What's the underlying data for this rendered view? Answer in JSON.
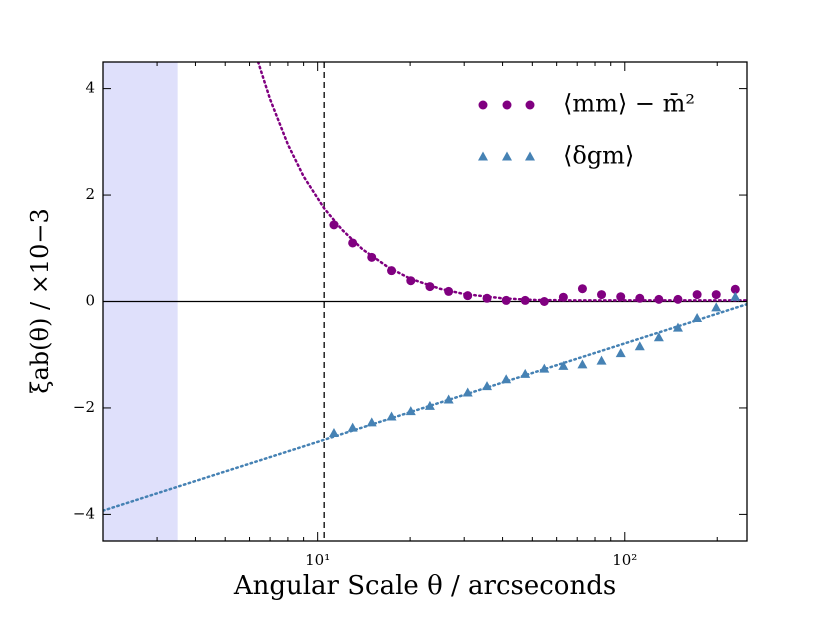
{
  "chart_data": {
    "type": "scatter",
    "xlabel": "Angular Scale θ / arcseconds",
    "ylabel": "ξab(θ) / ×10−3",
    "xscale": "log",
    "xlim": [
      2,
      250
    ],
    "ylim": [
      -4.5,
      4.5
    ],
    "xticks": [
      {
        "value": 10,
        "label": "10¹"
      },
      {
        "value": 100,
        "label": "10²"
      }
    ],
    "yticks": [
      {
        "value": -4,
        "label": "−4"
      },
      {
        "value": -2,
        "label": "−2"
      },
      0,
      2,
      4
    ],
    "hline": 0,
    "vline": 10.5,
    "shaded_region": [
      2,
      3.5
    ],
    "shaded_color": "#dfe0fb",
    "legend": "upper right",
    "x": [
      11.3,
      13.0,
      15.0,
      17.4,
      20.1,
      23.2,
      26.7,
      30.8,
      35.6,
      41.1,
      47.4,
      54.7,
      63.1,
      72.8,
      84.0,
      97.0,
      111.9,
      129.1,
      149.0,
      172,
      198.5,
      229
    ],
    "series": [
      {
        "name": "⟨mm⟩ − m̄²",
        "color": "#800080",
        "marker": "circle",
        "values": [
          1.44,
          1.1,
          0.83,
          0.58,
          0.39,
          0.28,
          0.19,
          0.11,
          0.06,
          0.02,
          0.02,
          0.0,
          0.08,
          0.24,
          0.13,
          0.09,
          0.06,
          0.04,
          0.04,
          0.13,
          0.13,
          0.23
        ]
      },
      {
        "name": "⟨δgm⟩",
        "color": "#4682b4",
        "marker": "triangle",
        "values": [
          -2.48,
          -2.38,
          -2.28,
          -2.17,
          -2.07,
          -1.97,
          -1.85,
          -1.72,
          -1.6,
          -1.47,
          -1.37,
          -1.27,
          -1.22,
          -1.19,
          -1.12,
          -0.98,
          -0.85,
          -0.68,
          -0.5,
          -0.32,
          -0.12,
          0.08
        ]
      }
    ],
    "models": [
      {
        "color": "#800080",
        "x": [
          6.4,
          7,
          8,
          9,
          10.5,
          12,
          14,
          17,
          20,
          25,
          30,
          40,
          50,
          70,
          100,
          150,
          250
        ],
        "values": [
          4.5,
          3.8,
          2.95,
          2.35,
          1.75,
          1.35,
          0.98,
          0.64,
          0.43,
          0.24,
          0.14,
          0.06,
          0.03,
          0.02,
          0.02,
          0.02,
          0.02
        ]
      },
      {
        "color": "#4682b4",
        "x": [
          2,
          250
        ],
        "values": [
          -3.93,
          -0.05
        ]
      }
    ]
  }
}
